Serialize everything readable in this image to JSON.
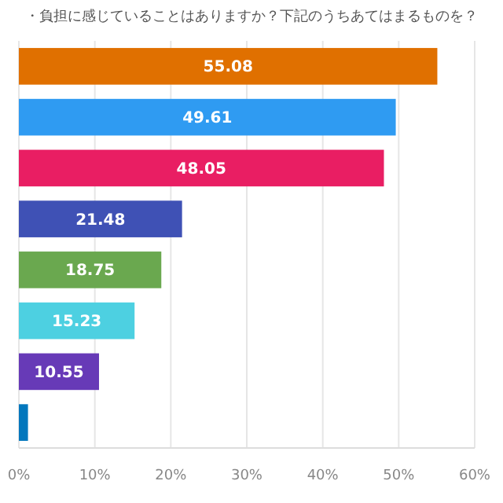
{
  "chart_data": {
    "type": "bar",
    "orientation": "horizontal",
    "title": "・負担に感じていることはありますか？下記のうちあてはまるものを？",
    "categories": [
      null,
      null,
      null,
      null,
      null,
      null,
      null,
      null
    ],
    "values": [
      55.08,
      49.61,
      48.05,
      21.48,
      18.75,
      15.23,
      10.55,
      1.2
    ],
    "value_labels": [
      "55.08",
      "49.61",
      "48.05",
      "21.48",
      "18.75",
      "15.23",
      "10.55",
      null
    ],
    "colors": [
      "#e07000",
      "#2f9bf2",
      "#e91e63",
      "#3f51b5",
      "#6aa84f",
      "#4dd0e1",
      "#673ab7",
      "#0277bd"
    ],
    "xlim": [
      0,
      60
    ],
    "xticks": [
      {
        "value": 0,
        "label": "0%"
      },
      {
        "value": 10,
        "label": "10%"
      },
      {
        "value": 20,
        "label": "20%"
      },
      {
        "value": 30,
        "label": "30%"
      },
      {
        "value": 40,
        "label": "40%"
      },
      {
        "value": 50,
        "label": "50%"
      },
      {
        "value": 60,
        "label": "60%"
      }
    ],
    "grid": "x"
  }
}
